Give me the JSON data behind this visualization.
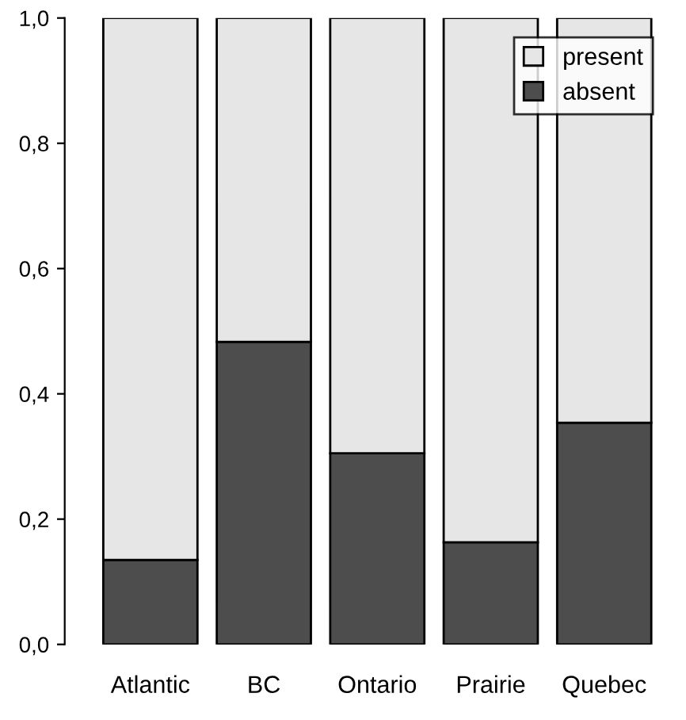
{
  "chart_data": {
    "type": "bar",
    "stacked": true,
    "categories": [
      "Atlantic",
      "BC",
      "Ontario",
      "Prairie",
      "Quebec"
    ],
    "series": [
      {
        "name": "absent",
        "color": "#4d4d4d",
        "values": [
          0.135,
          0.483,
          0.305,
          0.163,
          0.354
        ]
      },
      {
        "name": "present",
        "color": "#e6e6e6",
        "values": [
          0.865,
          0.517,
          0.695,
          0.837,
          0.646
        ]
      }
    ],
    "ylim": [
      0,
      1
    ],
    "yticks": [
      {
        "value": 0,
        "label": "0,0"
      },
      {
        "value": 0.2,
        "label": "0,2"
      },
      {
        "value": 0.4,
        "label": "0,4"
      },
      {
        "value": 0.6,
        "label": "0,6"
      },
      {
        "value": 0.8,
        "label": "0,8"
      },
      {
        "value": 1,
        "label": "1,0"
      }
    ],
    "grid": false,
    "legend": "top right"
  }
}
